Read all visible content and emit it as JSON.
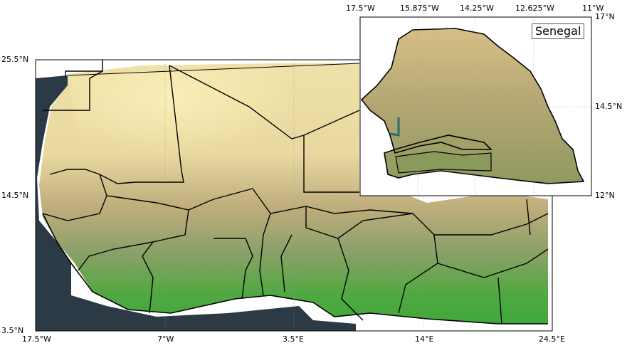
{
  "main_map": {
    "x_ticks": [
      "17.5°W",
      "7°W",
      "3.5°E",
      "14°E",
      "24.5°E"
    ],
    "y_ticks": [
      "25.5°N",
      "14.5°N",
      "3.5°N"
    ]
  },
  "inset_map": {
    "label": "Senegal",
    "x_ticks": [
      "17.5°W",
      "15.875°W",
      "14.25°W",
      "12.625°W",
      "11°W"
    ],
    "y_ticks": [
      "17°N",
      "14.5°N",
      "12°N"
    ]
  }
}
